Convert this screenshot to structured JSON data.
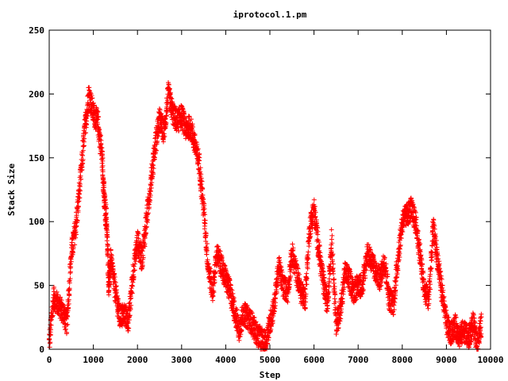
{
  "chart_data": {
    "type": "scatter",
    "title": "iprotocol.1.pm",
    "xlabel": "Step",
    "ylabel": "Stack Size",
    "xlim": [
      0,
      10000
    ],
    "ylim": [
      0,
      250
    ],
    "xticks": [
      0,
      1000,
      2000,
      3000,
      4000,
      5000,
      6000,
      7000,
      8000,
      9000,
      10000
    ],
    "yticks": [
      0,
      50,
      100,
      150,
      200,
      250
    ],
    "xtick_labels": [
      "0",
      "1000",
      "2000",
      "3000",
      "4000",
      "5000",
      "6000",
      "7000",
      "8000",
      "9000",
      "10000"
    ],
    "ytick_labels": [
      "0",
      "50",
      "100",
      "150",
      "200",
      "250"
    ],
    "grid": false,
    "legend": "none",
    "marker": "plus",
    "color": "#ff0000",
    "x_max_data": 9800,
    "series": [
      {
        "x": [
          0,
          100,
          200,
          300,
          400,
          500,
          600,
          700,
          800,
          900,
          1000,
          1100,
          1200,
          1250,
          1300,
          1350,
          1400,
          1500,
          1600,
          1700,
          1800,
          1900,
          2000,
          2100,
          2200,
          2300,
          2400,
          2500,
          2600,
          2700,
          2800,
          2900,
          3000,
          3100,
          3200,
          3300,
          3400,
          3500,
          3600,
          3700,
          3800,
          3900,
          4000,
          4100,
          4200,
          4300,
          4400,
          4500,
          4600,
          4700,
          4800,
          4900,
          5000,
          5100,
          5200,
          5300,
          5400,
          5500,
          5600,
          5700,
          5800,
          5900,
          6000,
          6100,
          6200,
          6300,
          6400,
          6500,
          6600,
          6700,
          6800,
          6900,
          7000,
          7100,
          7200,
          7300,
          7400,
          7500,
          7600,
          7700,
          7800,
          7900,
          8000,
          8100,
          8200,
          8300,
          8400,
          8500,
          8600,
          8700,
          8800,
          8900,
          9000,
          9100,
          9200,
          9300,
          9400,
          9500,
          9600,
          9700,
          9800
        ],
        "y": [
          5,
          40,
          35,
          30,
          20,
          75,
          95,
          130,
          170,
          200,
          185,
          178,
          150,
          115,
          100,
          50,
          70,
          45,
          25,
          28,
          22,
          60,
          85,
          70,
          100,
          130,
          160,
          180,
          170,
          200,
          185,
          178,
          183,
          172,
          175,
          160,
          145,
          110,
          65,
          45,
          75,
          65,
          55,
          45,
          30,
          15,
          28,
          25,
          20,
          12,
          8,
          5,
          20,
          35,
          65,
          50,
          45,
          75,
          60,
          45,
          40,
          95,
          110,
          80,
          55,
          35,
          85,
          20,
          30,
          60,
          55,
          45,
          50,
          50,
          75,
          70,
          60,
          55,
          70,
          40,
          35,
          70,
          100,
          105,
          110,
          100,
          75,
          45,
          40,
          95,
          70,
          45,
          20,
          12,
          18,
          10,
          15,
          8,
          20,
          5,
          20
        ]
      }
    ]
  }
}
